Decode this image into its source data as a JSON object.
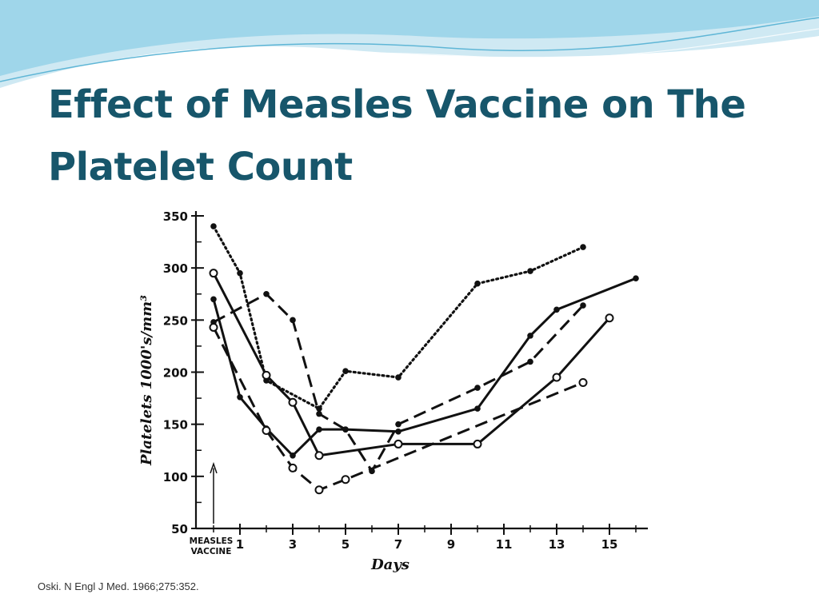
{
  "slide": {
    "title_line1": "Effect of Measles Vaccine on The",
    "title_line2": "Platelet Count",
    "citation": "Oski. N Engl J Med. 1966;275:352."
  },
  "colors": {
    "title": "#17566b",
    "wave": "#5fb6d6",
    "ink": "#111111"
  },
  "chart_data": {
    "type": "line",
    "title": "",
    "xlabel": "Days",
    "ylabel": "Platelets 1000's/mm³",
    "x_marker_label_line1": "MEASLES",
    "x_marker_label_line2": "VACCINE",
    "xlim": [
      0,
      16
    ],
    "ylim": [
      50,
      350
    ],
    "x_ticks": [
      1,
      3,
      5,
      7,
      9,
      11,
      13,
      15
    ],
    "y_ticks": [
      50,
      100,
      150,
      200,
      250,
      300,
      350
    ],
    "grid": false,
    "series": [
      {
        "style": "dotted",
        "marker": "filled",
        "x": [
          0,
          1,
          2,
          4,
          5,
          7,
          10,
          12,
          14
        ],
        "y": [
          340,
          295,
          192,
          165,
          201,
          195,
          285,
          297,
          320
        ]
      },
      {
        "style": "long-dash",
        "marker": "filled",
        "x": [
          0,
          2,
          3,
          4,
          5,
          6,
          7,
          10,
          12,
          14
        ],
        "y": [
          248,
          275,
          250,
          160,
          145,
          105,
          150,
          185,
          210,
          264
        ]
      },
      {
        "style": "solid",
        "marker": "open",
        "x": [
          0,
          2,
          3,
          4,
          7,
          10,
          13,
          15
        ],
        "y": [
          295,
          197,
          171,
          120,
          131,
          131,
          195,
          252
        ]
      },
      {
        "style": "solid",
        "marker": "filled",
        "x": [
          0,
          1,
          2,
          3,
          4,
          5,
          7,
          10,
          12,
          13,
          16
        ],
        "y": [
          270,
          176,
          146,
          120,
          145,
          145,
          143,
          165,
          235,
          260,
          290
        ]
      },
      {
        "style": "long-dash",
        "marker": "open",
        "x": [
          0,
          2,
          3,
          4,
          5,
          14
        ],
        "y": [
          243,
          144,
          108,
          87,
          97,
          190
        ]
      }
    ]
  }
}
